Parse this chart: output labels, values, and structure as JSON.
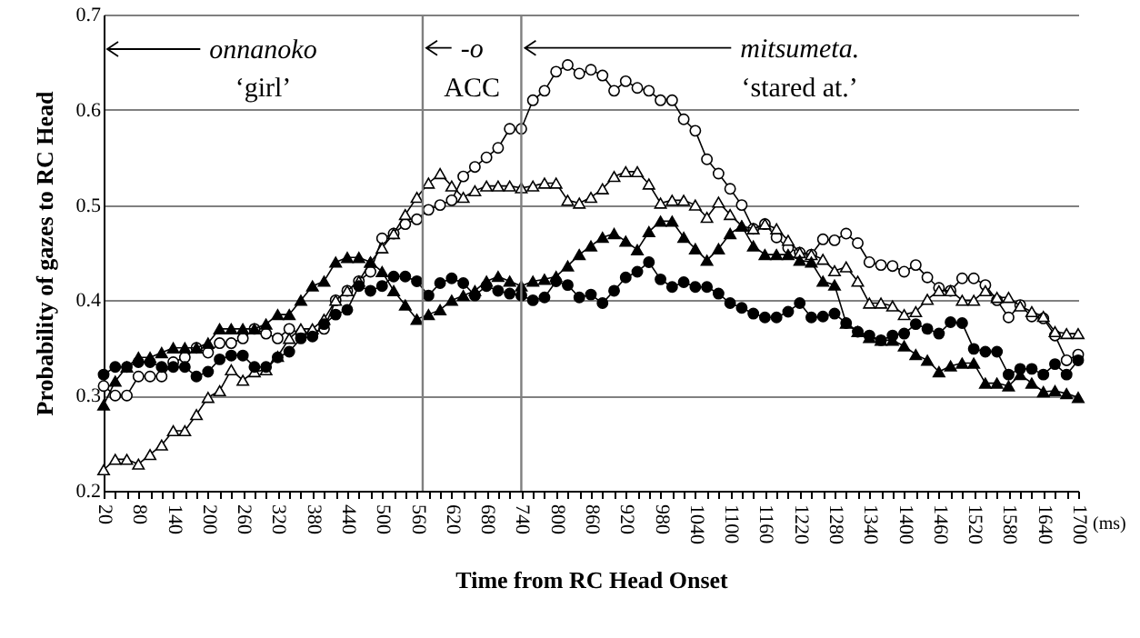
{
  "chart_data": {
    "type": "line",
    "xlabel": "Time from RC Head Onset",
    "ylabel": "Probability of gazes to RC Head",
    "x": [
      20,
      40,
      60,
      80,
      100,
      120,
      140,
      160,
      180,
      200,
      220,
      240,
      260,
      280,
      300,
      320,
      340,
      360,
      380,
      400,
      420,
      440,
      460,
      480,
      500,
      520,
      540,
      560,
      580,
      600,
      620,
      640,
      660,
      680,
      700,
      720,
      740,
      760,
      780,
      800,
      820,
      840,
      860,
      880,
      900,
      920,
      940,
      960,
      980,
      1000,
      1020,
      1040,
      1060,
      1080,
      1100,
      1120,
      1140,
      1160,
      1180,
      1200,
      1220,
      1240,
      1260,
      1280,
      1300,
      1320,
      1340,
      1360,
      1380,
      1400,
      1420,
      1440,
      1460,
      1480,
      1500,
      1520,
      1540,
      1560,
      1580,
      1600,
      1620,
      1640,
      1660,
      1680,
      1700
    ],
    "series": [
      {
        "color": "#ffffff",
        "marker": "circle",
        "values": [
          0.31,
          0.3,
          0.3,
          0.32,
          0.32,
          0.32,
          0.335,
          0.34,
          0.35,
          0.345,
          0.355,
          0.355,
          0.36,
          0.37,
          0.365,
          0.36,
          0.37,
          0.365,
          0.365,
          0.37,
          0.4,
          0.41,
          0.42,
          0.43,
          0.465,
          0.47,
          0.48,
          0.485,
          0.495,
          0.5,
          0.505,
          0.53,
          0.54,
          0.55,
          0.56,
          0.58,
          0.58,
          0.61,
          0.62,
          0.64,
          0.647,
          0.638,
          0.642,
          0.636,
          0.62,
          0.63,
          0.623,
          0.62,
          0.61,
          0.61,
          0.59,
          0.578,
          0.548,
          0.533,
          0.517,
          0.5,
          0.475,
          0.48,
          0.466,
          0.455,
          0.45,
          0.448,
          0.464,
          0.463,
          0.47,
          0.46,
          0.44,
          0.437,
          0.436,
          0.43,
          0.437,
          0.424,
          0.413,
          0.41,
          0.423,
          0.423,
          0.416,
          0.4,
          0.382,
          0.395,
          0.383,
          0.381,
          0.363,
          0.337,
          0.343
        ]
      },
      {
        "color": "#ffffff",
        "marker": "triangle",
        "values": [
          0.222,
          0.233,
          0.233,
          0.228,
          0.238,
          0.248,
          0.263,
          0.263,
          0.28,
          0.298,
          0.305,
          0.327,
          0.316,
          0.325,
          0.327,
          0.341,
          0.36,
          0.37,
          0.37,
          0.38,
          0.4,
          0.41,
          0.42,
          0.44,
          0.455,
          0.47,
          0.49,
          0.508,
          0.523,
          0.533,
          0.52,
          0.508,
          0.515,
          0.52,
          0.52,
          0.52,
          0.518,
          0.52,
          0.523,
          0.523,
          0.505,
          0.502,
          0.508,
          0.517,
          0.53,
          0.535,
          0.535,
          0.522,
          0.502,
          0.505,
          0.505,
          0.5,
          0.487,
          0.503,
          0.49,
          0.478,
          0.475,
          0.48,
          0.475,
          0.463,
          0.45,
          0.448,
          0.443,
          0.431,
          0.435,
          0.42,
          0.397,
          0.397,
          0.394,
          0.385,
          0.388,
          0.401,
          0.41,
          0.41,
          0.4,
          0.4,
          0.41,
          0.403,
          0.403,
          0.394,
          0.388,
          0.383,
          0.367,
          0.365,
          0.365
        ]
      },
      {
        "color": "#000000",
        "marker": "circle",
        "values": [
          0.322,
          0.33,
          0.33,
          0.335,
          0.335,
          0.33,
          0.33,
          0.33,
          0.32,
          0.325,
          0.338,
          0.342,
          0.342,
          0.33,
          0.33,
          0.34,
          0.346,
          0.36,
          0.362,
          0.375,
          0.385,
          0.39,
          0.415,
          0.41,
          0.415,
          0.425,
          0.425,
          0.42,
          0.405,
          0.418,
          0.423,
          0.418,
          0.405,
          0.415,
          0.41,
          0.407,
          0.405,
          0.4,
          0.403,
          0.42,
          0.416,
          0.403,
          0.406,
          0.397,
          0.41,
          0.424,
          0.43,
          0.44,
          0.422,
          0.414,
          0.419,
          0.414,
          0.414,
          0.407,
          0.397,
          0.392,
          0.386,
          0.382,
          0.382,
          0.388,
          0.397,
          0.382,
          0.383,
          0.386,
          0.376,
          0.367,
          0.363,
          0.358,
          0.363,
          0.365,
          0.375,
          0.37,
          0.365,
          0.377,
          0.376,
          0.349,
          0.346,
          0.346,
          0.322,
          0.328,
          0.328,
          0.322,
          0.333,
          0.322,
          0.337
        ]
      },
      {
        "color": "#000000",
        "marker": "triangle",
        "values": [
          0.29,
          0.315,
          0.33,
          0.34,
          0.34,
          0.345,
          0.35,
          0.35,
          0.35,
          0.355,
          0.37,
          0.37,
          0.37,
          0.37,
          0.375,
          0.385,
          0.385,
          0.4,
          0.415,
          0.42,
          0.44,
          0.445,
          0.445,
          0.44,
          0.43,
          0.41,
          0.395,
          0.38,
          0.385,
          0.39,
          0.4,
          0.405,
          0.41,
          0.42,
          0.425,
          0.42,
          0.415,
          0.42,
          0.422,
          0.425,
          0.436,
          0.448,
          0.457,
          0.466,
          0.47,
          0.462,
          0.453,
          0.472,
          0.483,
          0.483,
          0.466,
          0.454,
          0.442,
          0.454,
          0.47,
          0.478,
          0.457,
          0.448,
          0.448,
          0.448,
          0.442,
          0.44,
          0.42,
          0.416,
          0.376,
          0.367,
          0.361,
          0.358,
          0.358,
          0.352,
          0.343,
          0.337,
          0.325,
          0.331,
          0.334,
          0.334,
          0.313,
          0.313,
          0.31,
          0.322,
          0.313,
          0.304,
          0.305,
          0.302,
          0.298
        ]
      }
    ],
    "xlim": [
      20,
      1700
    ],
    "xticks": [
      20,
      {
        "value": 40,
        "label": null
      },
      {
        "value": 60,
        "label": null
      },
      80,
      {
        "value": 100,
        "label": null
      },
      {
        "value": 120,
        "label": null
      },
      140,
      {
        "value": 160,
        "label": null
      },
      {
        "value": 180,
        "label": null
      },
      200,
      {
        "value": 220,
        "label": null
      },
      {
        "value": 240,
        "label": null
      },
      260,
      {
        "value": 280,
        "label": null
      },
      {
        "value": 300,
        "label": null
      },
      320,
      {
        "value": 340,
        "label": null
      },
      {
        "value": 360,
        "label": null
      },
      380,
      {
        "value": 400,
        "label": null
      },
      {
        "value": 420,
        "label": null
      },
      440,
      {
        "value": 460,
        "label": null
      },
      {
        "value": 480,
        "label": null
      },
      500,
      {
        "value": 520,
        "label": null
      },
      {
        "value": 540,
        "label": null
      },
      560,
      {
        "value": 580,
        "label": null
      },
      {
        "value": 600,
        "label": null
      },
      620,
      {
        "value": 640,
        "label": null
      },
      {
        "value": 660,
        "label": null
      },
      680,
      {
        "value": 700,
        "label": null
      },
      {
        "value": 720,
        "label": null
      },
      740,
      {
        "value": 760,
        "label": null
      },
      {
        "value": 780,
        "label": null
      },
      800,
      {
        "value": 820,
        "label": null
      },
      {
        "value": 840,
        "label": null
      },
      860,
      {
        "value": 880,
        "label": null
      },
      {
        "value": 900,
        "label": null
      },
      920,
      {
        "value": 940,
        "label": null
      },
      {
        "value": 960,
        "label": null
      },
      980,
      {
        "value": 1000,
        "label": null
      },
      {
        "value": 1020,
        "label": null
      },
      1040,
      {
        "value": 1060,
        "label": null
      },
      {
        "value": 1080,
        "label": null
      },
      1100,
      {
        "value": 1120,
        "label": null
      },
      {
        "value": 1140,
        "label": null
      },
      1160,
      {
        "value": 1180,
        "label": null
      },
      {
        "value": 1200,
        "label": null
      },
      1220,
      {
        "value": 1240,
        "label": null
      },
      {
        "value": 1260,
        "label": null
      },
      1280,
      {
        "value": 1300,
        "label": null
      },
      {
        "value": 1320,
        "label": null
      },
      1340,
      {
        "value": 1360,
        "label": null
      },
      {
        "value": 1380,
        "label": null
      },
      1400,
      {
        "value": 1420,
        "label": null
      },
      {
        "value": 1440,
        "label": null
      },
      1460,
      {
        "value": 1480,
        "label": null
      },
      {
        "value": 1500,
        "label": null
      },
      1520,
      {
        "value": 1540,
        "label": null
      },
      {
        "value": 1560,
        "label": null
      },
      1580,
      {
        "value": 1600,
        "label": null
      },
      {
        "value": 1620,
        "label": null
      },
      1640,
      {
        "value": 1660,
        "label": null
      },
      {
        "value": 1680,
        "label": null
      },
      1700
    ],
    "ylim": [
      0.2,
      0.7
    ],
    "yticks": [
      0.2,
      0.3,
      0.4,
      0.5,
      0.6,
      0.7
    ],
    "grid": "y",
    "line_style": "solid",
    "ref_lines": [
      {
        "axis": "x",
        "value": 570,
        "color": "#7f7f7f"
      },
      {
        "axis": "x",
        "value": 740,
        "color": "#7f7f7f"
      }
    ],
    "annotations": [
      "onnanoko",
      "‘girl’",
      {
        "text": "-o",
        "x": 570,
        "y": 0.665
      },
      "ACC",
      {
        "text": "mitsumeta.",
        "x": 740,
        "y": 0.665
      },
      "‘stared at.’",
      "(ms)"
    ]
  }
}
